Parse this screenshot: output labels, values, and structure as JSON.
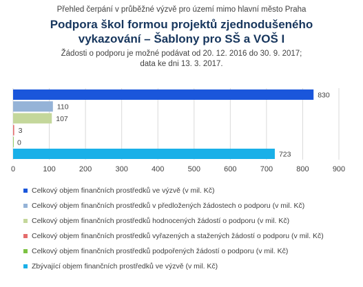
{
  "chart_data": {
    "type": "bar",
    "orientation": "horizontal",
    "supertitle": "Přehled čerpání v průběžné výzvě pro území mimo hlavní město Praha",
    "title_lines": [
      "Podpora škol formou projektů zjednodušeného",
      "vykazování – Šablony pro SŠ a VOŠ I"
    ],
    "subtitle_lines": [
      "Žádosti o podporu je možné podávat od 20. 12. 2016 do 30. 9. 2017;",
      "data ke dni 13. 3. 2017."
    ],
    "series": [
      {
        "name": "Celkový objem finančních prostředků ve výzvě (v mil. Kč)",
        "value": 830,
        "label": "830",
        "color": "#1a56db"
      },
      {
        "name": "Celkový objem finančních prostředků v předložených žádostech o podporu (v mil. Kč)",
        "value": 110,
        "label": "110",
        "color": "#95b3d7"
      },
      {
        "name": "Celkový objem finančních prostředků hodnocených žádostí o podporu (v mil. Kč)",
        "value": 107,
        "label": "107",
        "color": "#c4d79b"
      },
      {
        "name": "Celkový objem finančních prostředků vyřazených a stažených žádostí o podporu (v mil. Kč)",
        "value": 3,
        "label": "3",
        "color": "#e46c6c"
      },
      {
        "name": "Celkový objem finančních prostředků podpořených žádostí o podporu (v mil. Kč)",
        "value": 0,
        "label": "0",
        "color": "#7cc242"
      },
      {
        "name": "Zbývající objem finančních prostředků ve výzvě (v mil. Kč)",
        "value": 723,
        "label": "723",
        "color": "#1ab0e8"
      }
    ],
    "xaxis": {
      "ticks": [
        0,
        100,
        200,
        300,
        400,
        500,
        600,
        700,
        800,
        900
      ],
      "tick_labels": [
        "0",
        "100",
        "200",
        "300",
        "400",
        "500",
        "600",
        "700",
        "800",
        "900"
      ]
    },
    "xlim": [
      0,
      900
    ],
    "grid": "vertical",
    "legend_position": "bottom"
  }
}
